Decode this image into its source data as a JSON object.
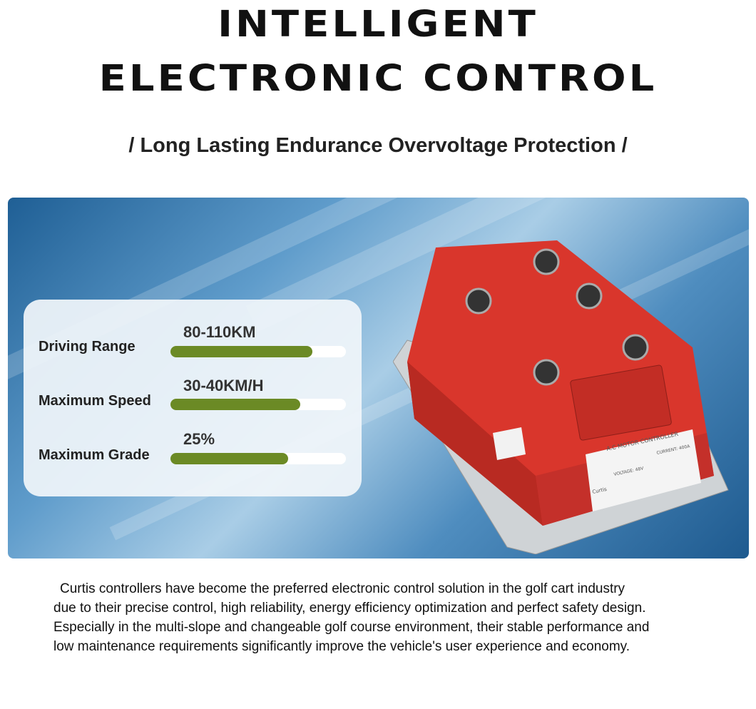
{
  "header": {
    "title_line1": "INTELLIGENT",
    "title_line2": "ELECTRONIC CONTROL",
    "subtitle": "/ Long Lasting Endurance Overvoltage Protection /"
  },
  "specs": [
    {
      "label": "Driving Range",
      "value": "80-110KM",
      "bar_fill_percent": 81
    },
    {
      "label": "Maximum Speed",
      "value": "30-40KM/H",
      "bar_fill_percent": 74
    },
    {
      "label": "Maximum Grade",
      "value": "25%",
      "bar_fill_percent": 67
    }
  ],
  "colors": {
    "bar_fill": "#6b8a25",
    "bar_track": "#ffffff",
    "controller_body": "#e0352b"
  },
  "product": {
    "label_title": "A.C MOTOR CONTROLLER",
    "brand": "Curtis",
    "current": "CURRENT: 400A",
    "voltage": "VOLTAGE: 48V"
  },
  "description": [
    "Curtis controllers have become the preferred electronic control solution in the golf cart industry",
    "due to their precise control, high reliability, energy efficiency optimization and perfect safety design.",
    "Especially in the multi-slope and changeable golf course environment, their stable performance and",
    "low maintenance requirements significantly improve the vehicle's user experience and economy."
  ]
}
